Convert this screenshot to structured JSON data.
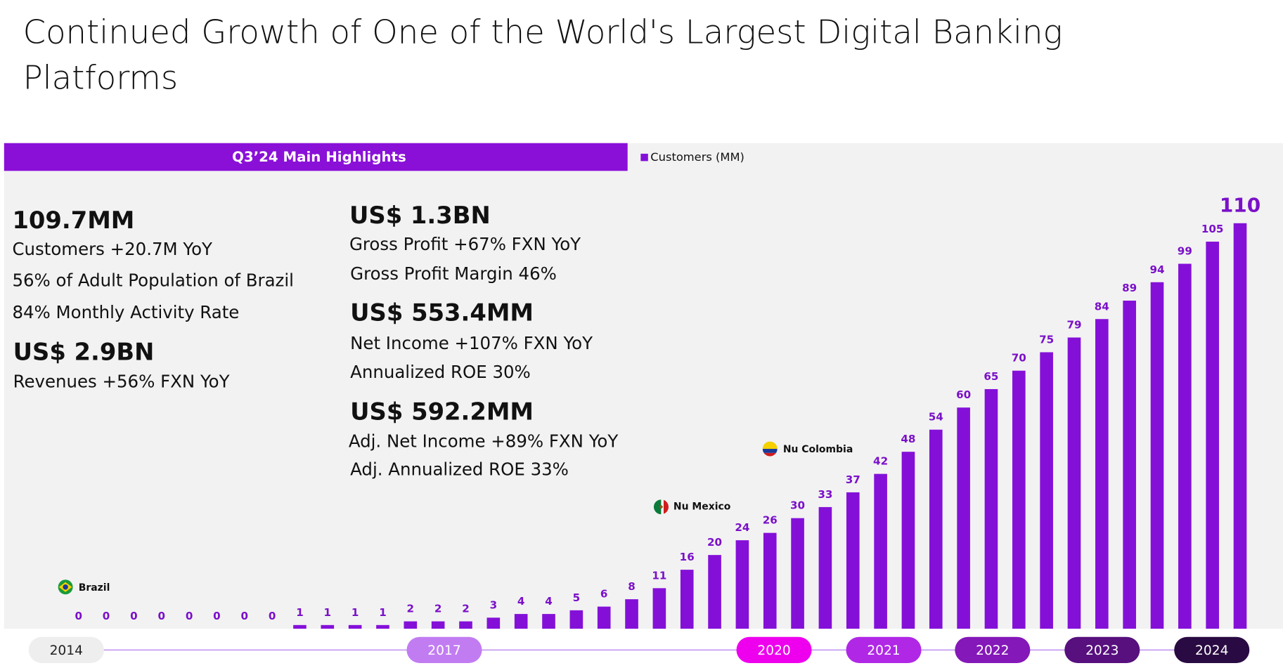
{
  "title": "Continued Growth of One of the World's Largest Digital Banking Platforms",
  "title_lines": [
    "Continued Growth of One of the World's Largest Digital Banking",
    "Platforms"
  ],
  "highlights": {
    "header": "Q3’24 Main Highlights",
    "left": [
      {
        "headline": "109.7MM",
        "lines": [
          "Customers +20.7M YoY",
          "56% of Adult Population of Brazil",
          "84% Monthly Activity Rate"
        ]
      },
      {
        "headline": "US$ 2.9BN",
        "lines": [
          "Revenues +56%  FXN YoY"
        ]
      }
    ],
    "middle": [
      {
        "headline": "US$ 1.3BN",
        "lines": [
          "Gross Profit +67%  FXN YoY",
          "Gross Profit Margin 46%"
        ]
      },
      {
        "headline": "US$ 553.4MM",
        "lines": [
          "Net Income +107% FXN YoY",
          "Annualized ROE 30%"
        ]
      },
      {
        "headline": "US$ 592.2MM",
        "lines": [
          "Adj. Net Income +89% FXN YoY",
          "Adj. Annualized ROE 33%"
        ]
      }
    ]
  },
  "markers": [
    "Brazil",
    "Nu Mexico",
    "Nu Colombia"
  ],
  "timeline": [
    {
      "label": "2014",
      "color": "#eeeeee"
    },
    {
      "label": "2017",
      "color": "#c27cf2"
    },
    {
      "label": "2020",
      "color": "#ee00ee"
    },
    {
      "label": "2021",
      "color": "#b028e6"
    },
    {
      "label": "2022",
      "color": "#8418b8"
    },
    {
      "label": "2023",
      "color": "#57107e"
    },
    {
      "label": "2024",
      "color": "#2a0a42"
    }
  ],
  "chart_data": {
    "type": "bar",
    "series": [
      {
        "name": "Customers (MM)",
        "color": "#8410d8",
        "values": [
          0,
          0,
          0,
          0,
          0,
          0,
          0,
          0,
          1,
          1,
          1,
          1,
          2,
          2,
          2,
          3,
          4,
          4,
          5,
          6,
          8,
          11,
          16,
          20,
          24,
          26,
          30,
          33,
          37,
          42,
          48,
          54,
          60,
          65,
          70,
          75,
          79,
          84,
          89,
          94,
          99,
          105,
          110
        ]
      }
    ],
    "categories": [
      null,
      null,
      null,
      null,
      null,
      null,
      null,
      null,
      null,
      null,
      null,
      null,
      null,
      null,
      null,
      null,
      null,
      null,
      null,
      null,
      null,
      null,
      null,
      null,
      null,
      null,
      null,
      null,
      null,
      null,
      null,
      null,
      null,
      null,
      null,
      null,
      null,
      null,
      null,
      null,
      null,
      null,
      null
    ]
  }
}
